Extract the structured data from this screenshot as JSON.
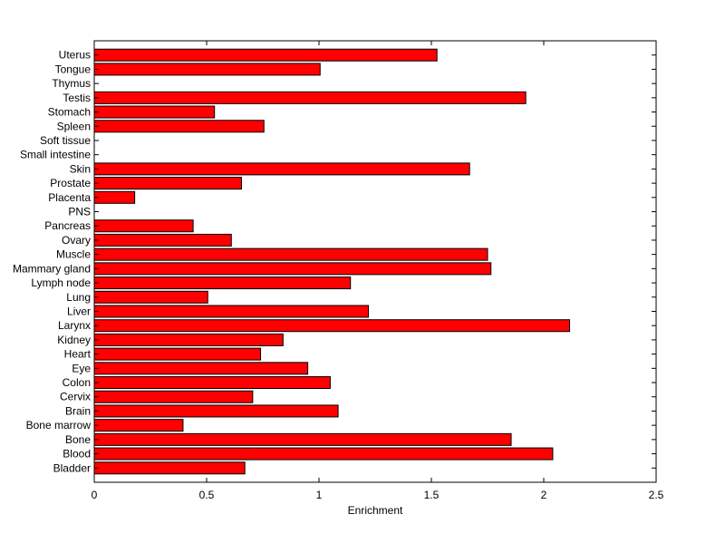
{
  "chart_data": {
    "type": "bar",
    "orientation": "horizontal",
    "title": "",
    "xlabel": "Enrichment",
    "ylabel": "",
    "xlim": [
      0,
      2.5
    ],
    "xticks": [
      "0",
      "0.5",
      "1",
      "1.5",
      "2",
      "2.5"
    ],
    "xtick_values": [
      0,
      0.5,
      1,
      1.5,
      2,
      2.5
    ],
    "grid": false,
    "bar_color": "#ff0000",
    "categories": [
      "Bladder",
      "Blood",
      "Bone",
      "Bone marrow",
      "Brain",
      "Cervix",
      "Colon",
      "Eye",
      "Heart",
      "Kidney",
      "Larynx",
      "Liver",
      "Lung",
      "Lymph node",
      "Mammary gland",
      "Muscle",
      "Ovary",
      "Pancreas",
      "PNS",
      "Placenta",
      "Prostate",
      "Skin",
      "Small intestine",
      "Soft tissue",
      "Spleen",
      "Stomach",
      "Testis",
      "Thymus",
      "Tongue",
      "Uterus"
    ],
    "values": [
      0.67,
      2.04,
      1.855,
      0.395,
      1.085,
      0.705,
      1.05,
      0.95,
      0.74,
      0.84,
      2.115,
      1.22,
      0.505,
      1.14,
      1.765,
      1.75,
      0.61,
      0.44,
      0,
      0.18,
      0.655,
      1.67,
      0,
      0,
      0.755,
      0.535,
      1.92,
      0,
      1.005,
      1.525
    ]
  }
}
